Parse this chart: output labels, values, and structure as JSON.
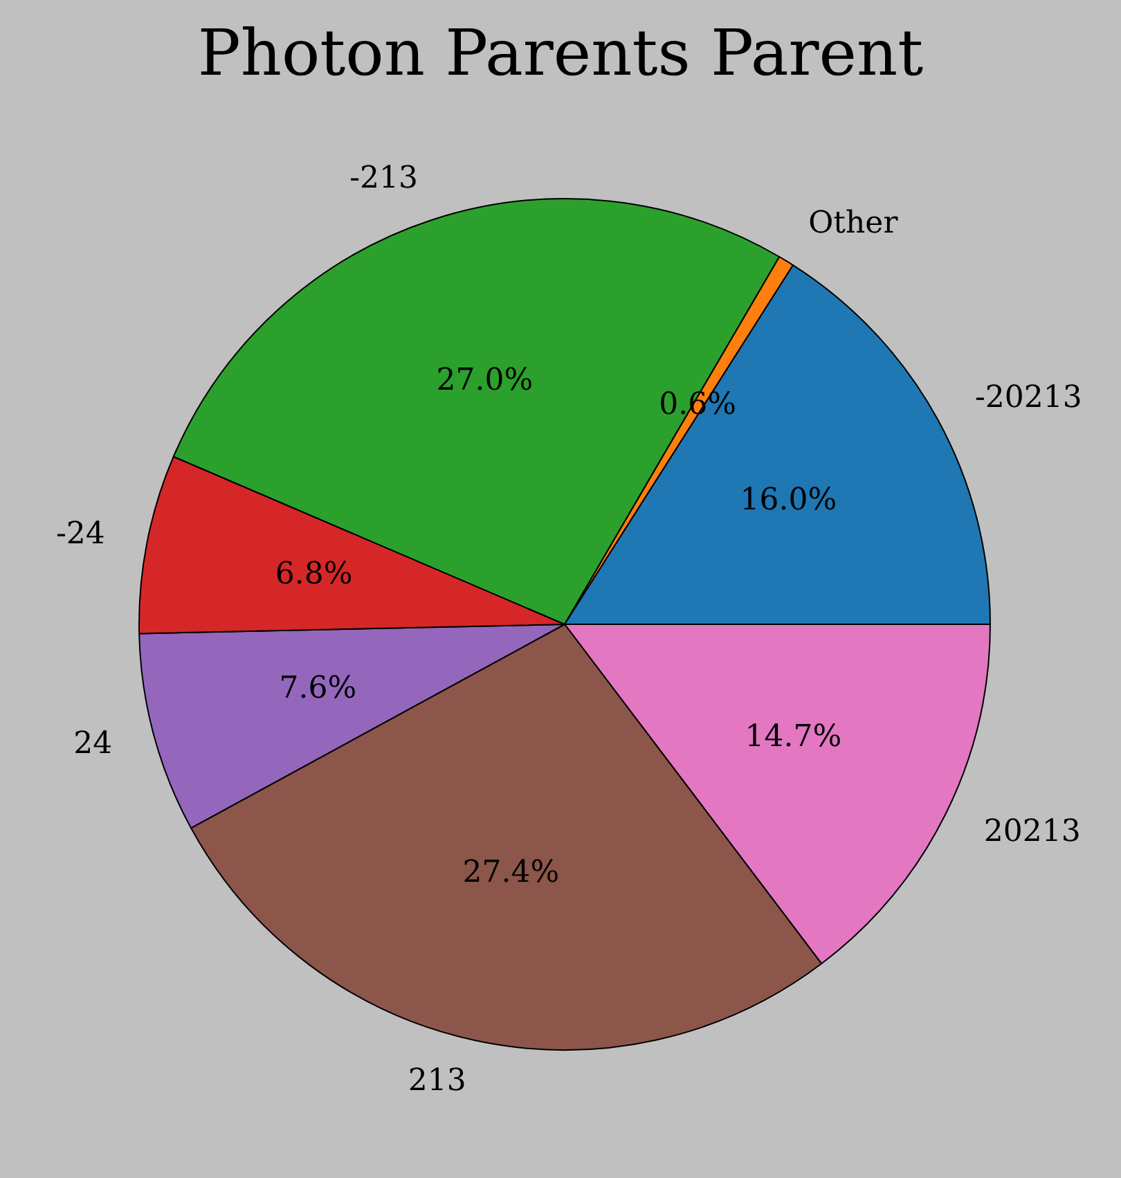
{
  "chart_data": {
    "type": "pie",
    "title": "Photon Parents Parent",
    "categories": [
      "-20213",
      "Other",
      "-213",
      "-24",
      "24",
      "213",
      "20213"
    ],
    "values": [
      16.0,
      0.6,
      27.0,
      6.8,
      7.6,
      27.4,
      14.7
    ],
    "value_labels": [
      "16.0%",
      "0.6%",
      "27.0%",
      "6.8%",
      "7.6%",
      "27.4%",
      "14.7%"
    ],
    "colors": [
      "#1f77b4",
      "#ff7f0e",
      "#2ca02c",
      "#d62728",
      "#9467bd",
      "#8c564b",
      "#e377c2"
    ],
    "legend": false
  }
}
